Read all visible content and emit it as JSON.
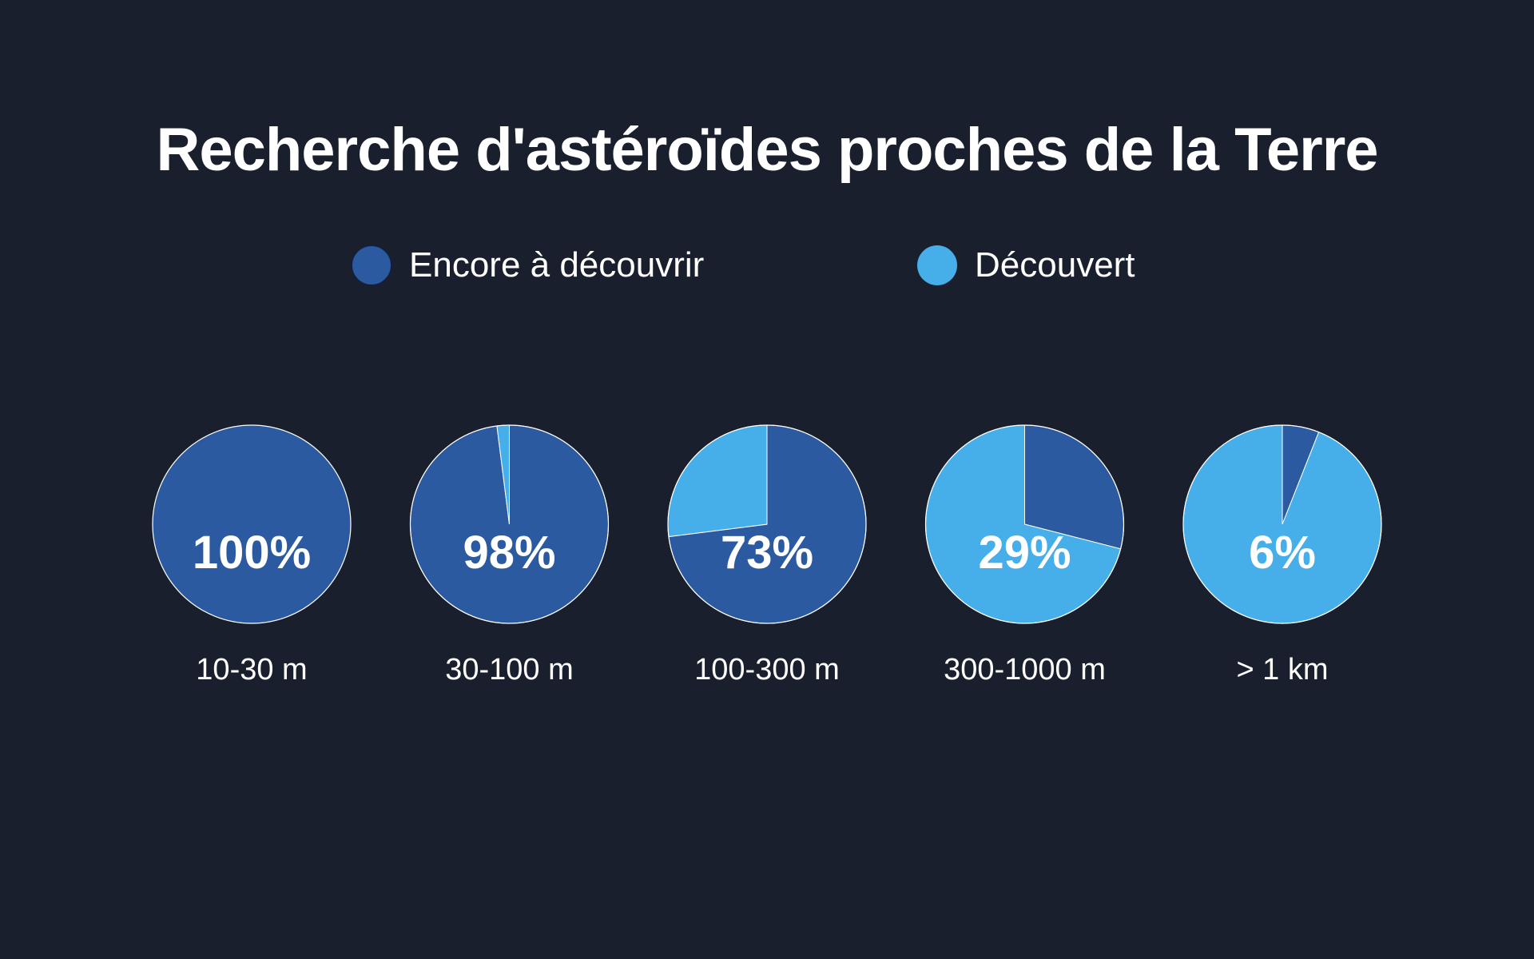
{
  "chart_data": {
    "type": "pie",
    "title": "Recherche d'astéroïdes proches de la Terre",
    "legend": [
      {
        "name": "Encore à découvrir",
        "color": "#2c5aa0"
      },
      {
        "name": "Découvert",
        "color": "#46aee8"
      }
    ],
    "legend_position": "top-center",
    "categories": [
      "10-30 m",
      "30-100 m",
      "100-300 m",
      "300-1000 m",
      "> 1 km"
    ],
    "labels": [
      "100%",
      "98%",
      "73%",
      "29%",
      "6%"
    ],
    "series": [
      {
        "name": "Encore à découvrir",
        "values": [
          100,
          98,
          73,
          29,
          6
        ]
      },
      {
        "name": "Découvert",
        "values": [
          0,
          2,
          27,
          71,
          94
        ]
      }
    ]
  }
}
